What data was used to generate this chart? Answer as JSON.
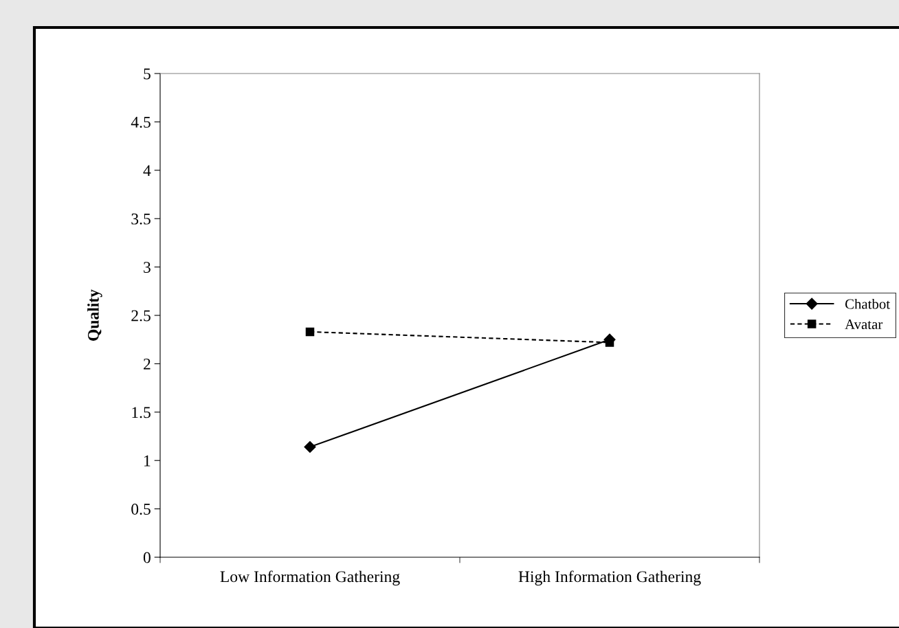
{
  "chart_data": {
    "type": "line",
    "ylabel": "Quality",
    "categories": [
      "Low Information Gathering",
      "High Information Gathering"
    ],
    "series": [
      {
        "name": "Chatbot",
        "color": "#000000",
        "values": [
          1.14,
          2.25
        ],
        "marker": "diamond",
        "line_style": "solid"
      },
      {
        "name": "Avatar",
        "color": "#000000",
        "values": [
          2.33,
          2.22
        ],
        "marker": "square",
        "line_style": "dashed"
      }
    ],
    "ylim": [
      0,
      5
    ],
    "yticks": [
      0,
      0.5,
      1,
      1.5,
      2,
      2.5,
      3,
      3.5,
      4,
      4.5,
      5
    ],
    "grid": false,
    "legend": "right"
  }
}
